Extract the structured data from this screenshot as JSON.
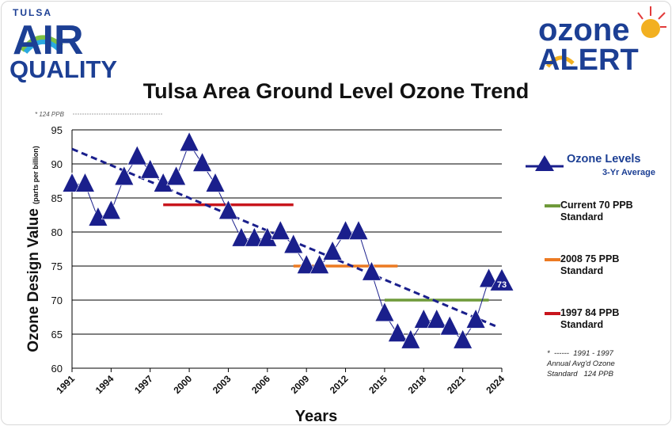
{
  "header": {
    "logo_left": {
      "top": "TULSA",
      "main": "AIR",
      "sub": "QUALITY",
      "colors": [
        "#1c3f94",
        "#2aa9e0",
        "#7cc242"
      ]
    },
    "logo_right": {
      "top": "ozone",
      "main": "ALERT",
      "colors": [
        "#1c3f94",
        "#f2b021",
        "#e23b3b"
      ]
    }
  },
  "chart_data": {
    "type": "line",
    "title": "Tulsa Area Ground Level Ozone Trend",
    "xlabel": "Years",
    "ylabel": "Ozone Design Value",
    "ylabel_unit": "(parts per billion)",
    "xlim": [
      1991,
      2024
    ],
    "ylim": [
      60,
      95
    ],
    "x_ticks": [
      "1991",
      "1994",
      "1997",
      "2000",
      "2003",
      "2006",
      "2009",
      "2012",
      "2015",
      "2018",
      "2021",
      "2024"
    ],
    "y_ticks": [
      60,
      65,
      70,
      75,
      80,
      85,
      90,
      95
    ],
    "grid": "horizontal",
    "series": [
      {
        "name": "Ozone Levels",
        "marker": "triangle",
        "color": "#1a1f8c",
        "x": [
          1991,
          1992,
          1993,
          1994,
          1995,
          1996,
          1997,
          1998,
          1999,
          2000,
          2001,
          2002,
          2003,
          2004,
          2005,
          2006,
          2007,
          2008,
          2009,
          2010,
          2011,
          2012,
          2013,
          2014,
          2015,
          2016,
          2017,
          2018,
          2019,
          2020,
          2021,
          2022,
          2023
        ],
        "values": [
          87,
          87,
          82,
          83,
          88,
          91,
          89,
          87,
          88,
          93,
          90,
          87,
          83,
          79,
          79,
          79,
          80,
          78,
          75,
          75,
          77,
          80,
          80,
          74,
          68,
          65,
          64,
          67,
          67,
          66,
          64,
          67,
          73
        ]
      }
    ],
    "trend": {
      "name": "3-Yr Average",
      "color": "#1a1f8c",
      "x": [
        1991,
        2023.5
      ],
      "values": [
        92.2,
        66.2
      ]
    },
    "standards": [
      {
        "name": "Current 70 PPB Standard",
        "value": 70,
        "x": [
          2015,
          2023
        ],
        "color": "#6f9a3a"
      },
      {
        "name": "2008 75 PPB Standard",
        "value": 75,
        "x": [
          2008,
          2016
        ],
        "color": "#ec7a22"
      },
      {
        "name": "1997 84 PPB Standard",
        "value": 84,
        "x": [
          1998,
          2008
        ],
        "color": "#c8161d"
      }
    ],
    "annotations": {
      "top_left": "* 124 PPB",
      "last_value_label": "73",
      "footnote": "*  ------  1991 - 1997\nAnnual Avg'd Ozone\nStandard   124 PPB"
    },
    "legend": {
      "position": "right"
    }
  }
}
